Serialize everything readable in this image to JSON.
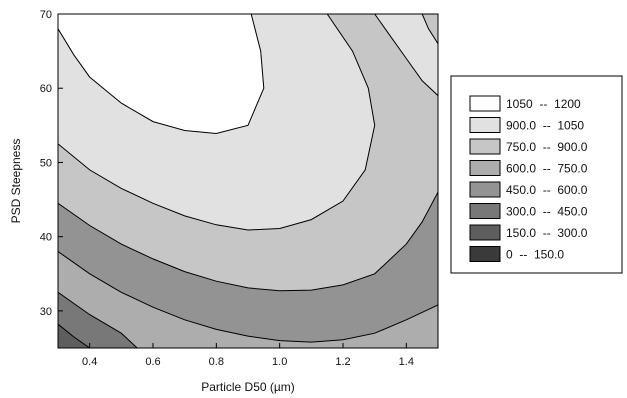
{
  "chart_data": {
    "type": "contour",
    "xlabel": "Particle D50 (µm)",
    "ylabel": "PSD Steepness",
    "xlim": [
      0.3,
      1.5
    ],
    "ylim": [
      25,
      70
    ],
    "x_ticks": [
      {
        "value": 0.4,
        "label": "0.4"
      },
      {
        "value": 0.6,
        "label": "0.6"
      },
      {
        "value": 0.8,
        "label": "0.8"
      },
      {
        "value": 1.0,
        "label": "1.0"
      },
      {
        "value": 1.2,
        "label": "1.2"
      },
      {
        "value": 1.4,
        "label": "1.4"
      }
    ],
    "y_ticks": [
      {
        "value": 30,
        "label": "30"
      },
      {
        "value": 40,
        "label": "40"
      },
      {
        "value": 50,
        "label": "50"
      },
      {
        "value": 60,
        "label": "60"
      },
      {
        "value": 70,
        "label": "70"
      }
    ],
    "legend": {
      "position": "right",
      "entries": [
        {
          "label": "1050  --  1200",
          "color": "#ffffff"
        },
        {
          "label": "900.0  --  1050",
          "color": "#e1e1e1"
        },
        {
          "label": "750.0  --  900.0",
          "color": "#c6c6c6"
        },
        {
          "label": "600.0  --  750.0",
          "color": "#adadad"
        },
        {
          "label": "450.0  --  600.0",
          "color": "#939393"
        },
        {
          "label": "300.0  --  450.0",
          "color": "#787878"
        },
        {
          "label": "150.0  --  300.0",
          "color": "#5e5e5e"
        },
        {
          "label": "0  --  150.0",
          "color": "#3a3a3a"
        }
      ]
    },
    "contours": [
      {
        "level": 1050,
        "points": [
          [
            0.3,
            68
          ],
          [
            0.35,
            64.5
          ],
          [
            0.4,
            61.5
          ],
          [
            0.5,
            58
          ],
          [
            0.6,
            55.5
          ],
          [
            0.7,
            54.3
          ],
          [
            0.8,
            53.9
          ],
          [
            0.9,
            55
          ],
          [
            0.95,
            60
          ],
          [
            0.94,
            65
          ],
          [
            0.91,
            70
          ]
        ]
      },
      {
        "level": 900,
        "points": [
          [
            0.3,
            52.5
          ],
          [
            0.4,
            49
          ],
          [
            0.5,
            46.5
          ],
          [
            0.6,
            44.5
          ],
          [
            0.7,
            42.8
          ],
          [
            0.8,
            41.6
          ],
          [
            0.9,
            40.9
          ],
          [
            1.0,
            41.1
          ],
          [
            1.1,
            42.3
          ],
          [
            1.2,
            44.8
          ],
          [
            1.27,
            49
          ],
          [
            1.3,
            55
          ],
          [
            1.28,
            60
          ],
          [
            1.23,
            65
          ],
          [
            1.15,
            70
          ]
        ]
      },
      {
        "level": 750,
        "points": [
          [
            0.3,
            44.5
          ],
          [
            0.4,
            41.5
          ],
          [
            0.5,
            39
          ],
          [
            0.6,
            37
          ],
          [
            0.7,
            35.3
          ],
          [
            0.8,
            34
          ],
          [
            0.9,
            33.1
          ],
          [
            1.0,
            32.7
          ],
          [
            1.1,
            32.8
          ],
          [
            1.2,
            33.5
          ],
          [
            1.3,
            35
          ],
          [
            1.4,
            39
          ],
          [
            1.45,
            42
          ],
          [
            1.5,
            46
          ]
        ]
      },
      {
        "level": 600,
        "points": [
          [
            0.3,
            38
          ],
          [
            0.4,
            35
          ],
          [
            0.5,
            32.5
          ],
          [
            0.6,
            30.5
          ],
          [
            0.7,
            28.8
          ],
          [
            0.8,
            27.5
          ],
          [
            0.9,
            26.6
          ],
          [
            1.0,
            26
          ],
          [
            1.1,
            25.8
          ],
          [
            1.2,
            26.1
          ],
          [
            1.3,
            27
          ],
          [
            1.4,
            28.8
          ],
          [
            1.5,
            30.8
          ]
        ]
      },
      {
        "level": 450,
        "points": [
          [
            0.3,
            32.5
          ],
          [
            0.4,
            29.5
          ],
          [
            0.5,
            27
          ],
          [
            0.55,
            25
          ]
        ]
      },
      {
        "level": 300,
        "points": [
          [
            0.3,
            28.2
          ],
          [
            0.35,
            26.5
          ],
          [
            0.4,
            25
          ]
        ]
      },
      {
        "level": 1050,
        "points": [
          [
            1.3,
            70
          ],
          [
            1.35,
            67
          ],
          [
            1.4,
            64
          ],
          [
            1.45,
            61
          ],
          [
            1.5,
            59
          ]
        ]
      },
      {
        "level": 900,
        "points": [
          [
            1.45,
            70
          ],
          [
            1.47,
            68
          ],
          [
            1.5,
            66
          ]
        ]
      }
    ]
  }
}
